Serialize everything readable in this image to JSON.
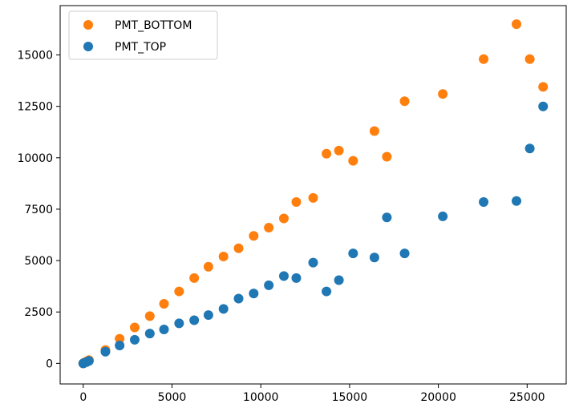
{
  "chart_data": {
    "type": "scatter",
    "title": "",
    "xlabel": "",
    "ylabel": "",
    "xlim": [
      -1300,
      27200
    ],
    "ylim": [
      -1000,
      17400
    ],
    "xticks": [
      0,
      5000,
      10000,
      15000,
      20000,
      25000
    ],
    "xtick_labels": [
      "0",
      "5000",
      "10000",
      "15000",
      "20000",
      "25000"
    ],
    "yticks": [
      0,
      2500,
      5000,
      7500,
      10000,
      12500,
      15000
    ],
    "ytick_labels": [
      "0",
      "2500",
      "5000",
      "7500",
      "10000",
      "12500",
      "15000"
    ],
    "grid": false,
    "legend_position": "top-left",
    "series": [
      {
        "name": "PMT_BOTTOM",
        "color": "#ff7f0e",
        "points": [
          [
            0,
            0
          ],
          [
            60,
            40
          ],
          [
            180,
            90
          ],
          [
            320,
            160
          ],
          [
            1250,
            650
          ],
          [
            2050,
            1200
          ],
          [
            2900,
            1750
          ],
          [
            3750,
            2300
          ],
          [
            4550,
            2900
          ],
          [
            5400,
            3500
          ],
          [
            6250,
            4150
          ],
          [
            7050,
            4700
          ],
          [
            7900,
            5200
          ],
          [
            8750,
            5600
          ],
          [
            9600,
            6200
          ],
          [
            10450,
            6600
          ],
          [
            11300,
            7050
          ],
          [
            12000,
            7850
          ],
          [
            12950,
            8050
          ],
          [
            13700,
            10200
          ],
          [
            14400,
            10350
          ],
          [
            15200,
            9850
          ],
          [
            16400,
            11300
          ],
          [
            17100,
            10050
          ],
          [
            18100,
            12750
          ],
          [
            20250,
            13100
          ],
          [
            22550,
            14800
          ],
          [
            24400,
            16500
          ],
          [
            25150,
            14800
          ],
          [
            25900,
            13450
          ]
        ]
      },
      {
        "name": "PMT_TOP",
        "color": "#1f77b4",
        "points": [
          [
            0,
            0
          ],
          [
            60,
            30
          ],
          [
            180,
            60
          ],
          [
            320,
            120
          ],
          [
            1250,
            570
          ],
          [
            2050,
            870
          ],
          [
            2900,
            1150
          ],
          [
            3750,
            1450
          ],
          [
            4550,
            1650
          ],
          [
            5400,
            1950
          ],
          [
            6250,
            2100
          ],
          [
            7050,
            2350
          ],
          [
            7900,
            2650
          ],
          [
            8750,
            3150
          ],
          [
            9600,
            3400
          ],
          [
            10450,
            3800
          ],
          [
            11300,
            4250
          ],
          [
            12000,
            4150
          ],
          [
            12950,
            4900
          ],
          [
            13700,
            3500
          ],
          [
            14400,
            4050
          ],
          [
            15200,
            5350
          ],
          [
            16400,
            5150
          ],
          [
            17100,
            7100
          ],
          [
            18100,
            5350
          ],
          [
            20250,
            7150
          ],
          [
            22550,
            7850
          ],
          [
            24400,
            7900
          ],
          [
            25150,
            10450
          ],
          [
            25900,
            12500
          ]
        ]
      }
    ]
  }
}
